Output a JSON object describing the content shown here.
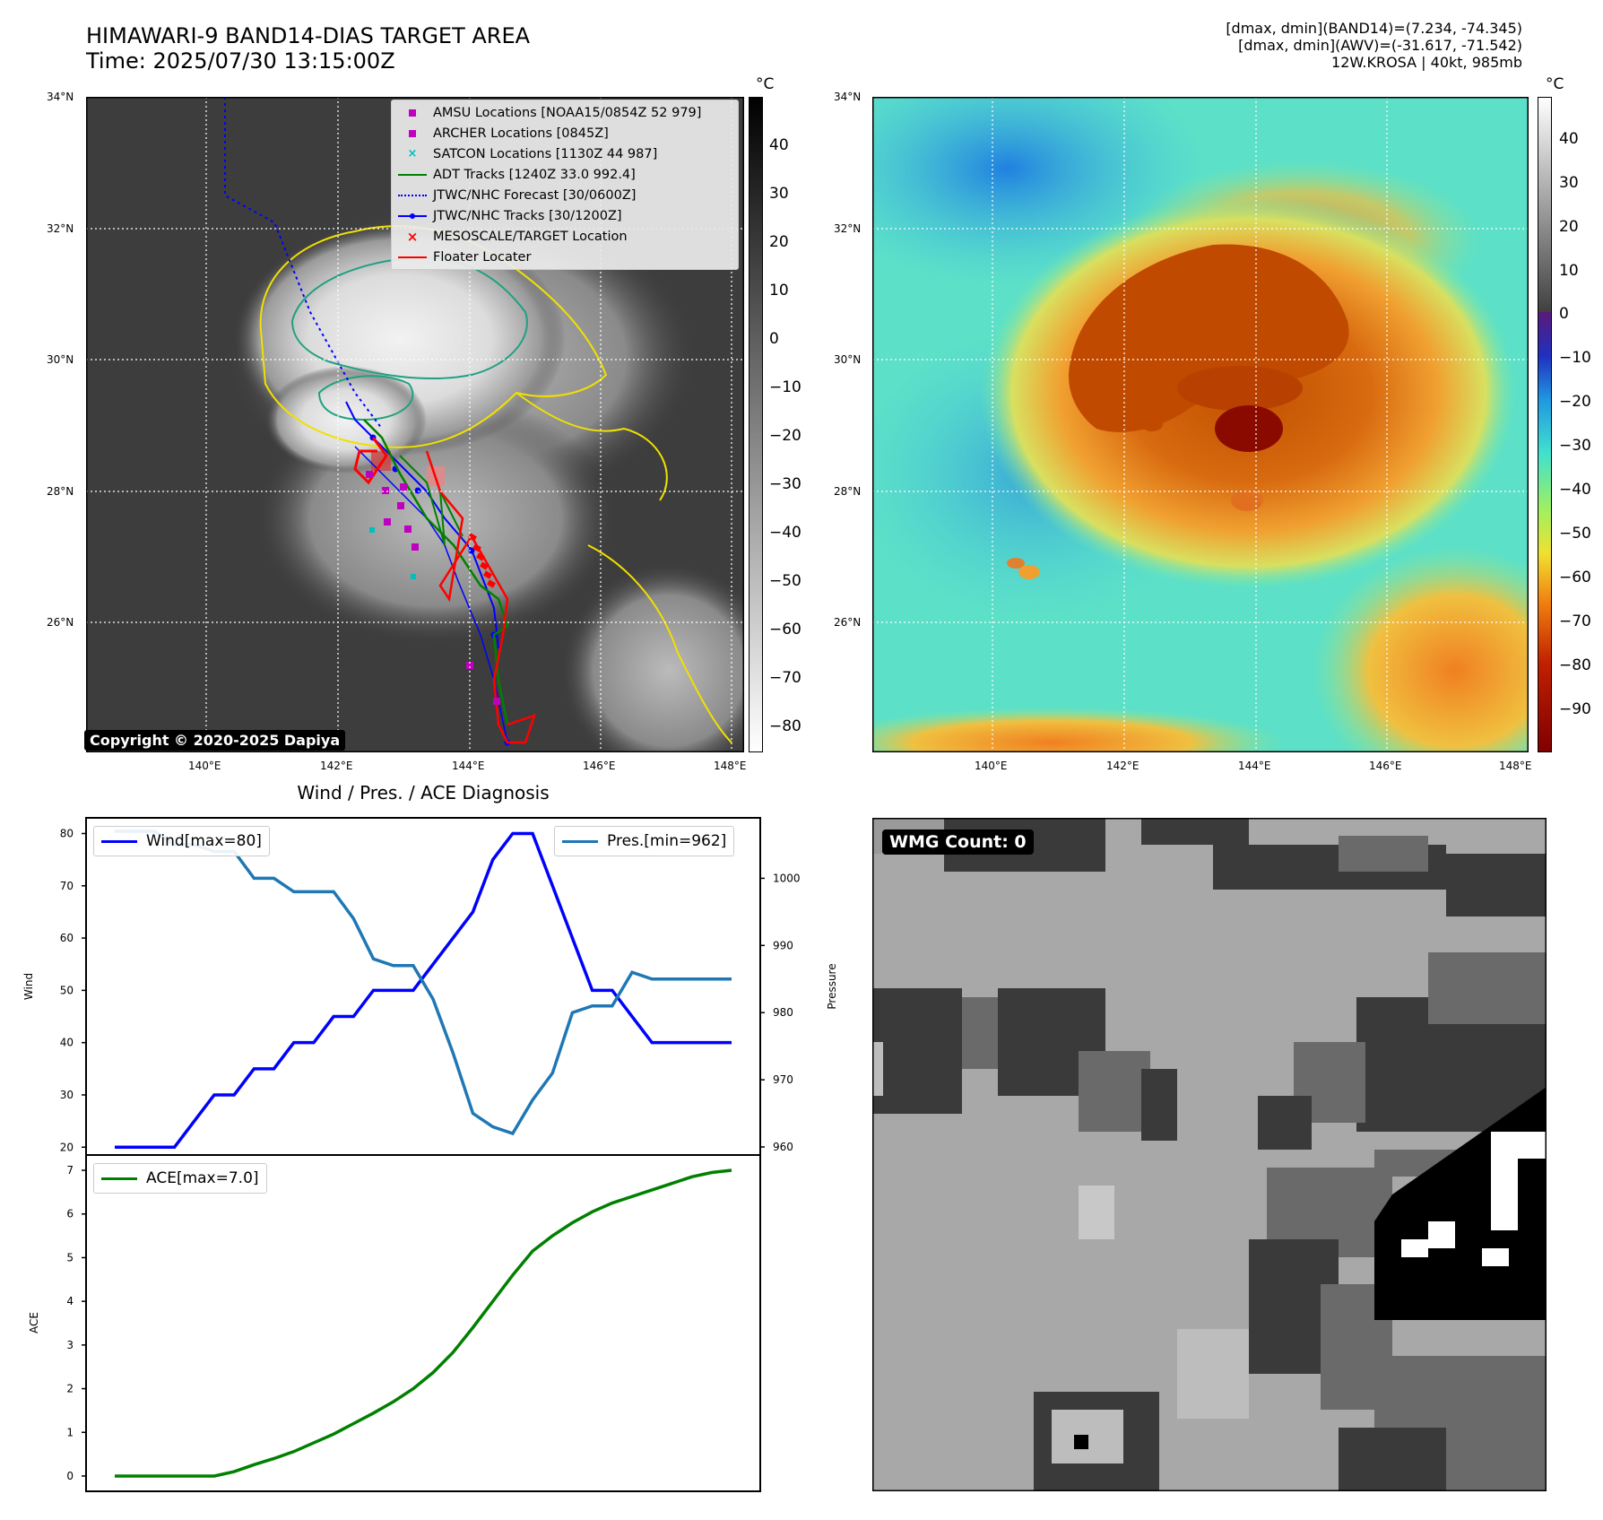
{
  "header": {
    "title_line1": "HIMAWARI-9 BAND14-DIAS TARGET AREA",
    "title_line2": "Time: 2025/07/30 13:15:00Z",
    "info_line1": "[dmax, dmin](BAND14)=(7.234, -74.345)",
    "info_line2": "[dmax, dmin](AWV)=(-31.617, -71.542)",
    "info_line3": "12W.KROSA | 40kt, 985mb"
  },
  "map": {
    "lat_labels": [
      "34°N",
      "32°N",
      "30°N",
      "28°N",
      "26°N"
    ],
    "lon_labels": [
      "140°E",
      "142°E",
      "144°E",
      "146°E",
      "148°E"
    ],
    "copyright": "Copyright © 2020-2025 Dapiya",
    "legend": [
      {
        "label": "AMSU Locations [NOAA15/0854Z 52 979]",
        "color": "#bf00bf",
        "symbol": "square"
      },
      {
        "label": "ARCHER Locations [0845Z]",
        "color": "#bf00bf",
        "symbol": "square"
      },
      {
        "label": "SATCON Locations [1130Z 44 987]",
        "color": "#00bfbf",
        "symbol": "x"
      },
      {
        "label": "ADT Tracks [1240Z 33.0 992.4]",
        "color": "#008000",
        "symbol": "line"
      },
      {
        "label": "JTWC/NHC Forecast [30/0600Z]",
        "color": "#0000ff",
        "symbol": "dotted"
      },
      {
        "label": "JTWC/NHC Tracks [30/1200Z]",
        "color": "#0000ff",
        "symbol": "line-dot"
      },
      {
        "label": "MESOSCALE/TARGET Location",
        "color": "#ff0000",
        "symbol": "x"
      },
      {
        "label": "Floater Locater",
        "color": "#ff0000",
        "symbol": "line"
      }
    ]
  },
  "colorbar_left": {
    "unit": "°C",
    "ticks": [
      "40",
      "30",
      "20",
      "10",
      "0",
      "−10",
      "−20",
      "−30",
      "−40",
      "−50",
      "−60",
      "−70",
      "−80"
    ]
  },
  "colorbar_right": {
    "unit": "°C",
    "ticks": [
      "40",
      "30",
      "20",
      "10",
      "0",
      "−10",
      "−20",
      "−30",
      "−40",
      "−50",
      "−60",
      "−70",
      "−80",
      "−90"
    ]
  },
  "diag": {
    "title": "Wind / Pres. / ACE Diagnosis",
    "wind_legend": "Wind[max=80]",
    "pres_legend": "Pres.[min=962]",
    "ace_legend": "ACE[max=7.0]",
    "wind_ylabel": "Wind",
    "pres_ylabel": "Pressure",
    "ace_ylabel": "ACE"
  },
  "wmg": {
    "label": "WMG Count: 0"
  },
  "chart_data": [
    {
      "type": "line",
      "title": "Wind / Pres. / ACE Diagnosis",
      "x": [
        0,
        1,
        2,
        3,
        4,
        5,
        6,
        7,
        8,
        9,
        10,
        11,
        12,
        13,
        14,
        15,
        16,
        17,
        18,
        19,
        20,
        21,
        22,
        23,
        24,
        25,
        26,
        27,
        28,
        29,
        30,
        31
      ],
      "series": [
        {
          "name": "Wind[max=80]",
          "axis": "left",
          "color": "#0000ff",
          "values": [
            20,
            20,
            20,
            20,
            25,
            30,
            30,
            35,
            35,
            40,
            40,
            45,
            45,
            50,
            50,
            50,
            55,
            60,
            65,
            75,
            80,
            80,
            70,
            60,
            50,
            50,
            45,
            40,
            40,
            40,
            40,
            40
          ]
        },
        {
          "name": "Pres.[min=962]",
          "axis": "right",
          "color": "#1f77b4",
          "values": [
            1007,
            1007,
            1007,
            1005,
            1005,
            1004,
            1004,
            1000,
            1000,
            998,
            998,
            998,
            994,
            988,
            987,
            987,
            982,
            974,
            965,
            963,
            962,
            967,
            971,
            980,
            981,
            981,
            986,
            985,
            985,
            985,
            985,
            985
          ]
        }
      ],
      "ylim_left": [
        18.5,
        83
      ],
      "ylim_right": [
        958.8,
        1009
      ],
      "yticks_left": [
        20,
        30,
        40,
        50,
        60,
        70,
        80
      ],
      "yticks_right": [
        960,
        970,
        980,
        990,
        1000
      ]
    },
    {
      "type": "line",
      "series": [
        {
          "name": "ACE[max=7.0]",
          "color": "#008000",
          "values": [
            0,
            0,
            0,
            0,
            0,
            0,
            0.1,
            0.26,
            0.4,
            0.56,
            0.76,
            0.96,
            1.2,
            1.44,
            1.7,
            2.0,
            2.37,
            2.83,
            3.4,
            4.0,
            4.6,
            5.15,
            5.5,
            5.8,
            6.05,
            6.25,
            6.4,
            6.55,
            6.7,
            6.85,
            6.95,
            7.0
          ]
        }
      ],
      "ylim": [
        -0.35,
        7.35
      ],
      "yticks": [
        0,
        1,
        2,
        3,
        4,
        5,
        6,
        7
      ]
    }
  ]
}
